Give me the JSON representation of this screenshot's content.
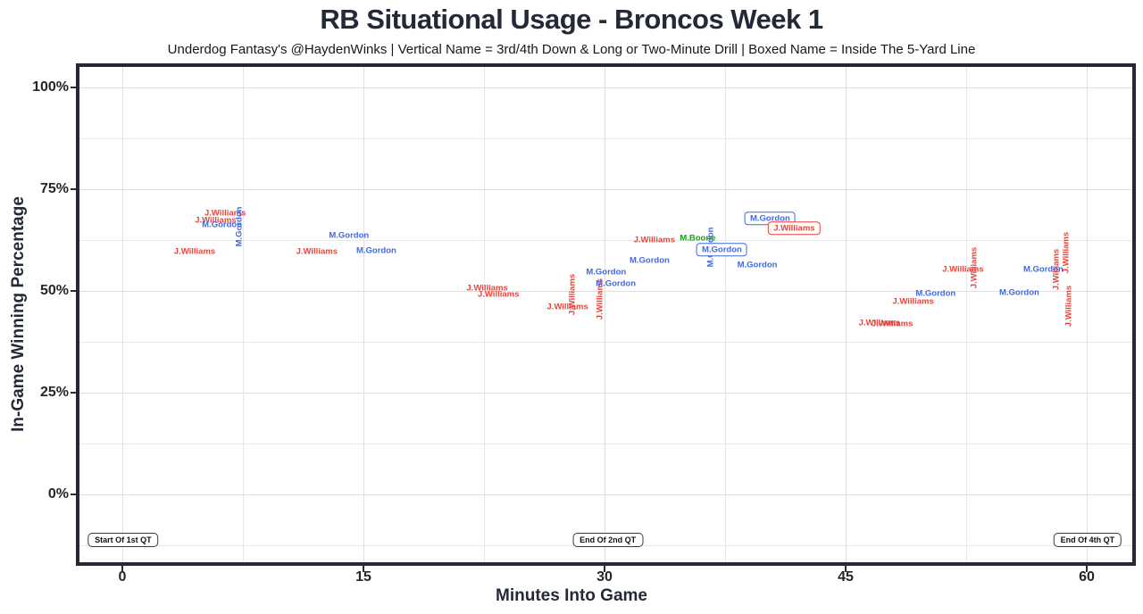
{
  "header": {
    "title": "RB Situational Usage - Broncos Week 1",
    "subtitle": "Underdog Fantasy's @HaydenWinks | Vertical Name = 3rd/4th Down & Long or Two-Minute Drill | Boxed Name = Inside The 5-Yard Line"
  },
  "colors": {
    "players": {
      "J.Williams": "#e8443b",
      "M.Gordon": "#4169e1",
      "M.Boone": "#15a015"
    },
    "axis": "#232937",
    "grid": "#e7e7e7",
    "annotation_border": "#333a47"
  },
  "chart_data": {
    "type": "scatter",
    "marker": "text-label",
    "title": "RB Situational Usage - Broncos Week 1",
    "subtitle": "Underdog Fantasy's @HaydenWinks | Vertical Name = 3rd/4th Down & Long or Two-Minute Drill | Boxed Name = Inside The 5-Yard Line",
    "xlabel": "Minutes Into Game",
    "ylabel": "In-Game Winning Percentage",
    "x_axis": {
      "ticks": [
        0,
        15,
        30,
        45,
        60
      ],
      "range": [
        -2.7,
        62.8
      ],
      "grid_interval": 7.5
    },
    "y_axis": {
      "ticks": [
        0,
        25,
        50,
        75,
        100
      ],
      "tick_labels": [
        "0%",
        "25%",
        "50%",
        "75%",
        "100%"
      ],
      "range": [
        -16.7,
        105
      ],
      "grid_interval": 12.5
    },
    "grid": true,
    "legend": false,
    "encoding_notes": "vertical = 3rd/4th Down & Long or Two-Minute Drill; boxed = Inside The 5-Yard Line",
    "points": [
      {
        "player": "J.Williams",
        "minute": 4.5,
        "win_pct": 59.6,
        "vertical": false,
        "boxed": false
      },
      {
        "player": "J.Williams",
        "minute": 12.1,
        "win_pct": 59.6,
        "vertical": false,
        "boxed": false
      },
      {
        "player": "M.Gordon",
        "minute": 14.1,
        "win_pct": 63.6,
        "vertical": false,
        "boxed": false
      },
      {
        "player": "M.Gordon",
        "minute": 15.8,
        "win_pct": 59.9,
        "vertical": false,
        "boxed": false
      },
      {
        "player": "J.Williams",
        "minute": 5.8,
        "win_pct": 67.3,
        "vertical": false,
        "boxed": false
      },
      {
        "player": "J.Williams",
        "minute": 6.4,
        "win_pct": 69.1,
        "vertical": false,
        "boxed": false
      },
      {
        "player": "M.Gordon",
        "minute": 6.2,
        "win_pct": 66.2,
        "vertical": false,
        "boxed": false
      },
      {
        "player": "M.Gordon",
        "minute": 7.3,
        "win_pct": 65.8,
        "vertical": true,
        "boxed": false
      },
      {
        "player": "J.Williams",
        "minute": 22.7,
        "win_pct": 50.7,
        "vertical": false,
        "boxed": false
      },
      {
        "player": "J.Williams",
        "minute": 23.4,
        "win_pct": 49.1,
        "vertical": false,
        "boxed": false
      },
      {
        "player": "J.Williams",
        "minute": 27.7,
        "win_pct": 46.1,
        "vertical": false,
        "boxed": false
      },
      {
        "player": "J.Williams",
        "minute": 28.0,
        "win_pct": 49.1,
        "vertical": true,
        "boxed": false
      },
      {
        "player": "J.Williams",
        "minute": 29.7,
        "win_pct": 48.0,
        "vertical": true,
        "boxed": false
      },
      {
        "player": "M.Gordon",
        "minute": 30.1,
        "win_pct": 54.6,
        "vertical": false,
        "boxed": false
      },
      {
        "player": "M.Gordon",
        "minute": 30.7,
        "win_pct": 51.8,
        "vertical": false,
        "boxed": false
      },
      {
        "player": "M.Gordon",
        "minute": 32.8,
        "win_pct": 57.5,
        "vertical": false,
        "boxed": false
      },
      {
        "player": "J.Williams",
        "minute": 33.1,
        "win_pct": 62.5,
        "vertical": false,
        "boxed": false
      },
      {
        "player": "M.Boone",
        "minute": 35.8,
        "win_pct": 62.9,
        "vertical": false,
        "boxed": false
      },
      {
        "player": "M.Gordon",
        "minute": 36.6,
        "win_pct": 60.7,
        "vertical": true,
        "boxed": false
      },
      {
        "player": "M.Gordon",
        "minute": 39.5,
        "win_pct": 56.4,
        "vertical": false,
        "boxed": false
      },
      {
        "player": "M.Gordon",
        "minute": 37.3,
        "win_pct": 60.1,
        "vertical": false,
        "boxed": true
      },
      {
        "player": "M.Gordon",
        "minute": 40.3,
        "win_pct": 67.8,
        "vertical": false,
        "boxed": true
      },
      {
        "player": "J.Williams",
        "minute": 41.8,
        "win_pct": 65.4,
        "vertical": false,
        "boxed": true
      },
      {
        "player": "J.Williams",
        "minute": 47.1,
        "win_pct": 42.1,
        "vertical": false,
        "boxed": false
      },
      {
        "player": "J.Williams",
        "minute": 47.9,
        "win_pct": 41.9,
        "vertical": false,
        "boxed": false
      },
      {
        "player": "J.Williams",
        "minute": 49.2,
        "win_pct": 47.4,
        "vertical": false,
        "boxed": false
      },
      {
        "player": "M.Gordon",
        "minute": 50.6,
        "win_pct": 49.3,
        "vertical": false,
        "boxed": false
      },
      {
        "player": "J.Williams",
        "minute": 52.3,
        "win_pct": 55.3,
        "vertical": false,
        "boxed": false
      },
      {
        "player": "J.Williams",
        "minute": 53.0,
        "win_pct": 55.7,
        "vertical": true,
        "boxed": false
      },
      {
        "player": "M.Gordon",
        "minute": 55.8,
        "win_pct": 49.6,
        "vertical": false,
        "boxed": false
      },
      {
        "player": "M.Gordon",
        "minute": 57.3,
        "win_pct": 55.3,
        "vertical": false,
        "boxed": false
      },
      {
        "player": "J.Williams",
        "minute": 58.1,
        "win_pct": 55.3,
        "vertical": true,
        "boxed": false
      },
      {
        "player": "J.Williams",
        "minute": 58.7,
        "win_pct": 59.4,
        "vertical": true,
        "boxed": false
      },
      {
        "player": "J.Williams",
        "minute": 58.9,
        "win_pct": 46.3,
        "vertical": true,
        "boxed": false
      }
    ],
    "annotations": [
      {
        "label": "Start Of 1st QT",
        "minute": 0.05,
        "win_pct": -11.2
      },
      {
        "label": "End Of 2nd QT",
        "minute": 30.2,
        "win_pct": -11.2
      },
      {
        "label": "End Of 4th QT",
        "minute": 60.05,
        "win_pct": -11.2
      }
    ]
  }
}
